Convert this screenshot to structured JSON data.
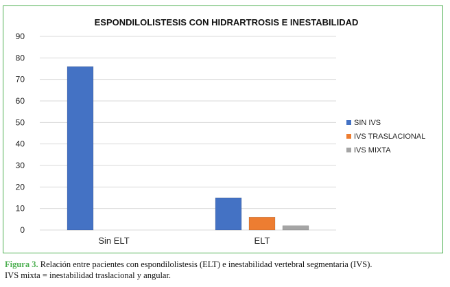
{
  "chart_data": {
    "type": "bar",
    "title": "ESPONDILOLISTESIS CON HIDRARTROSIS E INESTABILIDAD",
    "categories": [
      "Sin ELT",
      "ELT"
    ],
    "series": [
      {
        "name": "SIN IVS",
        "values": [
          76,
          15
        ],
        "color": "#4472c4"
      },
      {
        "name": "IVS TRASLACIONAL",
        "values": [
          0,
          6
        ],
        "color": "#ed7d31"
      },
      {
        "name": "IVS MIXTA",
        "values": [
          0,
          2
        ],
        "color": "#a5a5a5"
      }
    ],
    "yticks": [
      0,
      10,
      20,
      30,
      40,
      50,
      60,
      70,
      80,
      90
    ],
    "ylim": [
      0,
      90
    ],
    "xlabel": "",
    "ylabel": "",
    "grid": true,
    "legend_position": "right"
  },
  "caption": {
    "figure_label": "Figura 3.",
    "line1": "Relación entre pacientes con espondilolistesis (ELT) e inestabilidad vertebral segmentaria (IVS).",
    "line2": "IVS mixta = inestabilidad traslacional y angular."
  },
  "colors": {
    "frame_border": "#4caf50",
    "gridline": "#d9d9d9"
  }
}
